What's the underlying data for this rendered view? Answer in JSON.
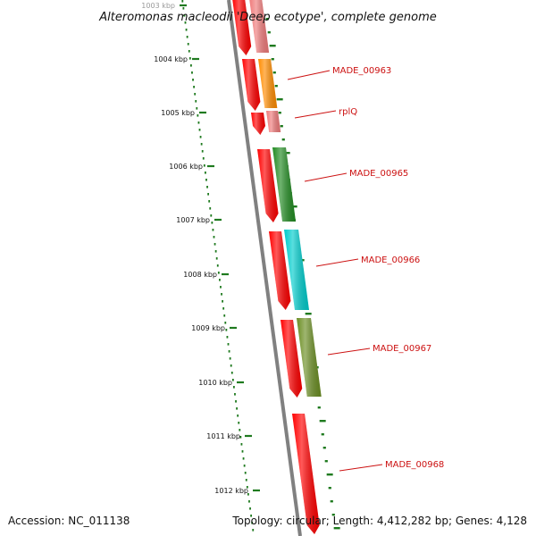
{
  "title": "Alteromonas macleodii 'Deep ecotype', complete genome",
  "footer": {
    "accession": "Accession: NC_011138",
    "topology": "Topology: circular; Length: 4,412,282 bp; Genes: 4,128"
  },
  "ruler": [
    {
      "label": "1003 kbp",
      "faded": true
    },
    {
      "label": "1004 kbp"
    },
    {
      "label": "1005 kbp"
    },
    {
      "label": "1006 kbp"
    },
    {
      "label": "1007 kbp"
    },
    {
      "label": "1008 kbp"
    },
    {
      "label": "1009 kbp"
    },
    {
      "label": "1010 kbp"
    },
    {
      "label": "1011 kbp"
    },
    {
      "label": "1012 kbp"
    }
  ],
  "genes": [
    {
      "label": "MADE_00963",
      "color": "#ff8c00"
    },
    {
      "label": "rplQ",
      "color": "#ef7a7a"
    },
    {
      "label": "MADE_00965",
      "color": "#228b22"
    },
    {
      "label": "MADE_00966",
      "color": "#00cccc"
    },
    {
      "label": "MADE_00967",
      "color": "#6b8e23"
    },
    {
      "label": "MADE_00968",
      "color": "#ff0000"
    }
  ],
  "colors": {
    "cds_forward": "#ff0000",
    "backbone": "#808080",
    "tick_green": "#1f7a1f",
    "label_red": "#cc1111"
  }
}
